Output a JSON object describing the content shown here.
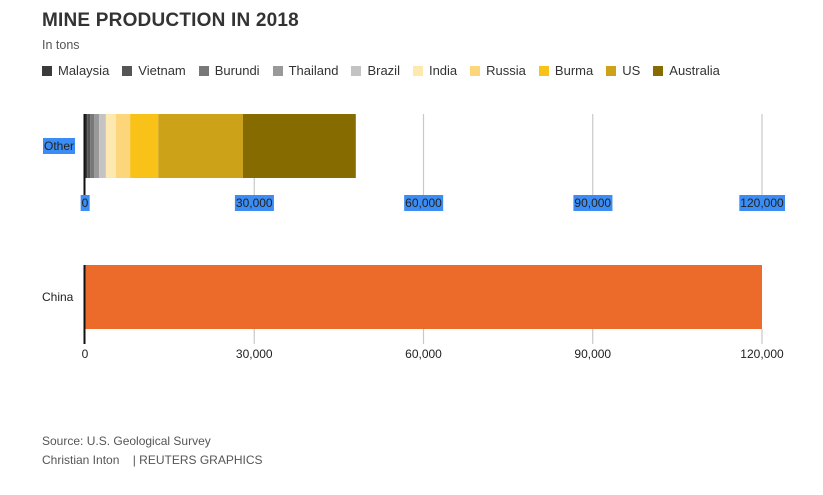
{
  "header": {
    "title": "MINE PRODUCTION IN 2018",
    "subtitle": "In tons"
  },
  "footer": {
    "source": "Source: U.S. Geological Survey",
    "credit": "Christian Inton    | REUTERS GRAPHICS"
  },
  "selection_highlight_color": "#3b8df5",
  "chart_data": [
    {
      "type": "bar",
      "orientation": "horizontal",
      "stacked": true,
      "title": "MINE PRODUCTION IN 2018",
      "subtitle": "In tons",
      "categories": [
        "Other"
      ],
      "series": [
        {
          "name": "Malaysia",
          "color": "#3a3a3a",
          "values": [
            400
          ]
        },
        {
          "name": "Vietnam",
          "color": "#555555",
          "values": [
            500
          ]
        },
        {
          "name": "Burundi",
          "color": "#787878",
          "values": [
            700
          ]
        },
        {
          "name": "Thailand",
          "color": "#999999",
          "values": [
            900
          ]
        },
        {
          "name": "Brazil",
          "color": "#c3c3c3",
          "values": [
            1200
          ]
        },
        {
          "name": "India",
          "color": "#fde8b0",
          "values": [
            1800
          ]
        },
        {
          "name": "Russia",
          "color": "#fdd57a",
          "values": [
            2500
          ]
        },
        {
          "name": "Burma",
          "color": "#f9c219",
          "values": [
            5000
          ]
        },
        {
          "name": "US",
          "color": "#cca218",
          "values": [
            15000
          ]
        },
        {
          "name": "Australia",
          "color": "#866b00",
          "values": [
            20000
          ]
        }
      ],
      "xlim": [
        0,
        120000
      ],
      "xticks": [
        0,
        30000,
        60000,
        90000,
        120000
      ],
      "xtick_labels": [
        "0",
        "30,000",
        "60,000",
        "90,000",
        "120,000"
      ],
      "grid": true,
      "legend": "top",
      "labels_selected": true
    },
    {
      "type": "bar",
      "orientation": "horizontal",
      "categories": [
        "China"
      ],
      "series": [
        {
          "name": "China",
          "color": "#ec6a2a",
          "values": [
            120000
          ]
        }
      ],
      "xlim": [
        0,
        120000
      ],
      "xticks": [
        0,
        30000,
        60000,
        90000,
        120000
      ],
      "xtick_labels": [
        "0",
        "30,000",
        "60,000",
        "90,000",
        "120,000"
      ],
      "grid": true
    }
  ]
}
